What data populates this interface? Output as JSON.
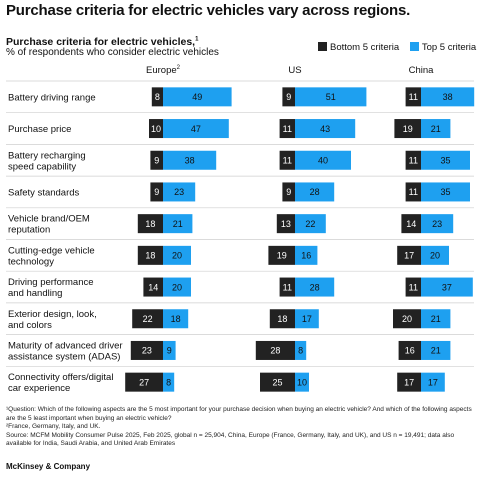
{
  "headline": "Purchase criteria for electric vehicles vary across regions.",
  "subtitle": "Purchase criteria for electric vehicles,",
  "subtitle_note": "1",
  "units": "% of respondents who consider electric vehicles",
  "chart_data": {
    "type": "bar",
    "title": "Purchase criteria for electric vehicles",
    "legend": [
      {
        "name": "Bottom 5 criteria",
        "color": "#222222"
      },
      {
        "name": "Top 5 criteria",
        "color": "#1ea0f0"
      }
    ],
    "regions": [
      {
        "name": "Europe",
        "note": "2"
      },
      {
        "name": "US",
        "note": ""
      },
      {
        "name": "China",
        "note": ""
      }
    ],
    "categories": [
      [
        "Battery driving range"
      ],
      [
        "Purchase price"
      ],
      [
        "Battery recharging",
        "speed capability"
      ],
      [
        "Safety standards"
      ],
      [
        "Vehicle brand/OEM",
        "reputation"
      ],
      [
        "Cutting-edge vehicle",
        "technology"
      ],
      [
        "Driving performance",
        "and handling"
      ],
      [
        "Exterior design, look,",
        "and colors"
      ],
      [
        "Maturity of advanced driver",
        "assistance system (ADAS)"
      ],
      [
        "Connectivity offers/digital",
        "car experience"
      ]
    ],
    "series": [
      {
        "name": "Bottom 5 criteria",
        "values": [
          [
            8,
            9,
            11
          ],
          [
            10,
            11,
            19
          ],
          [
            9,
            11,
            11
          ],
          [
            9,
            9,
            11
          ],
          [
            18,
            13,
            14
          ],
          [
            18,
            19,
            17
          ],
          [
            14,
            11,
            11
          ],
          [
            22,
            18,
            20
          ],
          [
            23,
            28,
            16
          ],
          [
            27,
            25,
            17
          ]
        ]
      },
      {
        "name": "Top 5 criteria",
        "values": [
          [
            49,
            51,
            38
          ],
          [
            47,
            43,
            21
          ],
          [
            38,
            40,
            35
          ],
          [
            23,
            28,
            35
          ],
          [
            21,
            22,
            23
          ],
          [
            20,
            16,
            20
          ],
          [
            20,
            28,
            37
          ],
          [
            18,
            17,
            21
          ],
          [
            9,
            8,
            21
          ],
          [
            8,
            10,
            17
          ]
        ]
      }
    ]
  },
  "notes": [
    "¹Question: Which of the following aspects are the 5 most important for your purchase decision when buying an electric vehicle? And which of the following aspects are the 5 least important when buying an electric vehicle?",
    "²France, Germany, Italy, and UK.",
    "Source: MCFM Mobility Consumer Pulse 2025, Feb 2025, global n = 25,904, China, Europe (France, Germany, Italy, and UK), and US n = 19,491; data also available for India, Saudi Arabia, and United Arab Emirates"
  ],
  "brand": "McKinsey & Company"
}
